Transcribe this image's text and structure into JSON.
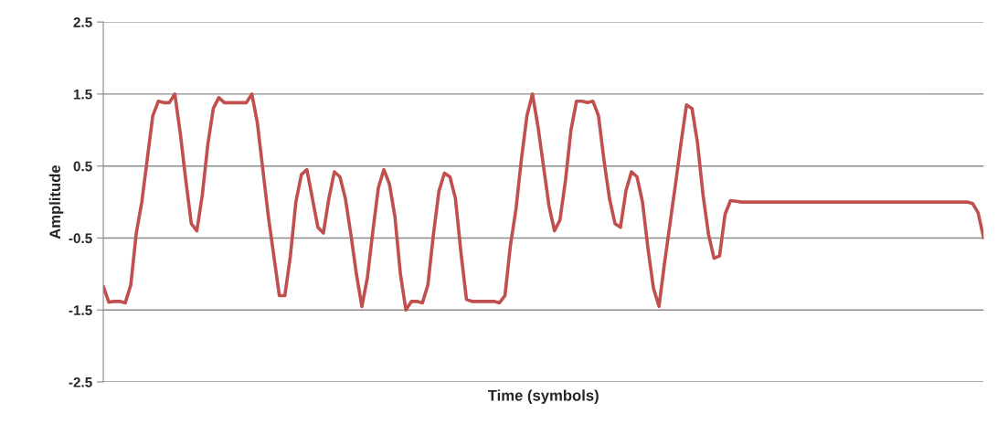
{
  "chart_data": {
    "type": "line",
    "xlabel": "Time (symbols)",
    "ylabel": "Amplitude",
    "categories": [
      null,
      null,
      null,
      null,
      null,
      null,
      null,
      null,
      null,
      null,
      null,
      null,
      null,
      null,
      null,
      null,
      null,
      null,
      null,
      null,
      null,
      null,
      null,
      null,
      null,
      null,
      null,
      null,
      null,
      null,
      null,
      null,
      null,
      null,
      null,
      null,
      null,
      null,
      null,
      null,
      null,
      null,
      null,
      null,
      null,
      null,
      null,
      null,
      null,
      null,
      null,
      null,
      null,
      null,
      null,
      null,
      null,
      null,
      null,
      null,
      null,
      null,
      null,
      null,
      null,
      null,
      null,
      null,
      null,
      null,
      null,
      null,
      null,
      null,
      null,
      null,
      null,
      null,
      null,
      null,
      null,
      null,
      null,
      null,
      null,
      null,
      null,
      null,
      null,
      null,
      null,
      null,
      null,
      null,
      null,
      null,
      null,
      null,
      null,
      null,
      null,
      null,
      null,
      null,
      null,
      null,
      null,
      null,
      null,
      null,
      null,
      null,
      null,
      null,
      null,
      null,
      null,
      null,
      null,
      null,
      null,
      null,
      null,
      null,
      null,
      null,
      null,
      null,
      null,
      null,
      null,
      null,
      null,
      null,
      null,
      null,
      null,
      null,
      null,
      null,
      null,
      null,
      null,
      null,
      null,
      null,
      null,
      null,
      null,
      null,
      null,
      null,
      null,
      null,
      null,
      null,
      null,
      null,
      null,
      null,
      null
    ],
    "series": [
      {
        "color": "#c0504d",
        "values": [
          -1.17,
          -1.39,
          -1.38,
          -1.38,
          -1.4,
          -1.15,
          -0.43,
          0.0,
          0.6,
          1.2,
          1.4,
          1.38,
          1.38,
          1.5,
          0.95,
          0.3,
          -0.3,
          -0.4,
          0.1,
          0.8,
          1.3,
          1.45,
          1.38,
          1.38,
          1.38,
          1.38,
          1.38,
          1.5,
          1.1,
          0.45,
          -0.2,
          -0.75,
          -1.3,
          -1.3,
          -0.75,
          0.0,
          0.38,
          0.45,
          0.05,
          -0.35,
          -0.43,
          0.05,
          0.42,
          0.35,
          0.05,
          -0.45,
          -1.0,
          -1.45,
          -1.05,
          -0.4,
          0.2,
          0.45,
          0.25,
          -0.2,
          -1.0,
          -1.5,
          -1.38,
          -1.38,
          -1.4,
          -1.15,
          -0.45,
          0.15,
          0.4,
          0.35,
          0.05,
          -0.7,
          -1.35,
          -1.38,
          -1.38,
          -1.38,
          -1.38,
          -1.38,
          -1.4,
          -1.3,
          -0.6,
          -0.1,
          0.6,
          1.2,
          1.5,
          1.05,
          0.5,
          -0.05,
          -0.4,
          -0.25,
          0.3,
          1.0,
          1.4,
          1.4,
          1.38,
          1.4,
          1.2,
          0.58,
          0.05,
          -0.3,
          -0.35,
          0.16,
          0.42,
          0.35,
          0.0,
          -0.65,
          -1.2,
          -1.45,
          -0.85,
          -0.3,
          0.25,
          0.82,
          1.35,
          1.3,
          0.82,
          0.1,
          -0.45,
          -0.78,
          -0.75,
          -0.17,
          0.02,
          0.01,
          0.0,
          0.0,
          0.0,
          0.0,
          0.0,
          0.0,
          0.0,
          0.0,
          0.0,
          0.0,
          0.0,
          0.0,
          0.0,
          0.0,
          0.0,
          0.0,
          0.0,
          0.0,
          0.0,
          0.0,
          0.0,
          0.0,
          0.0,
          0.0,
          0.0,
          0.0,
          0.0,
          0.0,
          0.0,
          0.0,
          0.0,
          0.0,
          0.0,
          0.0,
          0.0,
          0.0,
          0.0,
          0.0,
          0.0,
          0.0,
          0.0,
          0.0,
          -0.02,
          -0.15,
          -0.5
        ]
      }
    ],
    "ylim": [
      -2.5,
      2.5
    ],
    "yticks": [
      -2.5,
      -1.5,
      -0.5,
      0.5,
      1.5,
      2.5
    ],
    "grid": "y",
    "tick_labels": "y",
    "marker": "none",
    "line_style": "solid"
  }
}
